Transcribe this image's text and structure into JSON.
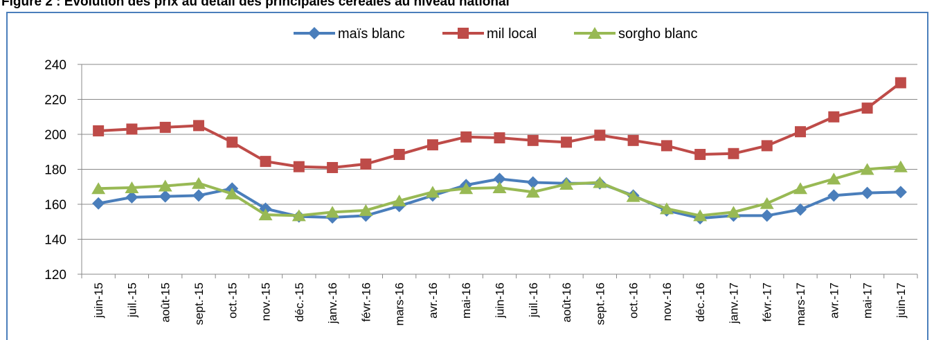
{
  "chart_data": {
    "type": "line",
    "title": "Figure 2 : Evolution des prix au détail des principales céréales au niveau national",
    "categories": [
      "juin-15",
      "juil.-15",
      "août-15",
      "sept.-15",
      "oct.-15",
      "nov.-15",
      "déc.-15",
      "janv.-16",
      "févr.-16",
      "mars-16",
      "avr.-16",
      "mai-16",
      "juin-16",
      "juil.-16",
      "août-16",
      "sept.-16",
      "oct.-16",
      "nov.-16",
      "déc.-16",
      "janv.-17",
      "févr.-17",
      "mars-17",
      "avr.-17",
      "mai-17",
      "juin-17"
    ],
    "series": [
      {
        "name": "maïs blanc",
        "color": "#4a7ebb",
        "marker": "diamond",
        "values": [
          160.5,
          164,
          164.5,
          165,
          169,
          157.5,
          153,
          152.5,
          153.5,
          159,
          165,
          171,
          174.5,
          172.5,
          172,
          172,
          165,
          156.5,
          152,
          153.5,
          153.5,
          157,
          165,
          166.5,
          167
        ]
      },
      {
        "name": "mil local",
        "color": "#be4b48",
        "marker": "square",
        "values": [
          202,
          203,
          204,
          205,
          195.5,
          184.5,
          181.5,
          181,
          183,
          188.5,
          194,
          198.5,
          198,
          196.5,
          195.5,
          199.5,
          196.5,
          193.5,
          188.5,
          189,
          193.5,
          201.5,
          210,
          215,
          229.5
        ]
      },
      {
        "name": "sorgho blanc",
        "color": "#98b954",
        "marker": "triangle",
        "values": [
          169,
          169.5,
          170.5,
          172,
          166,
          154,
          153.5,
          155.5,
          156.5,
          162,
          167,
          169,
          169.5,
          167,
          171.5,
          172.5,
          164.5,
          157.5,
          153.5,
          155.5,
          160.5,
          169,
          174.5,
          180,
          181.5
        ]
      }
    ],
    "ylim": [
      120,
      240
    ],
    "yticks": [
      120,
      140,
      160,
      180,
      200,
      220,
      240
    ],
    "grid": true,
    "legend": "top"
  }
}
